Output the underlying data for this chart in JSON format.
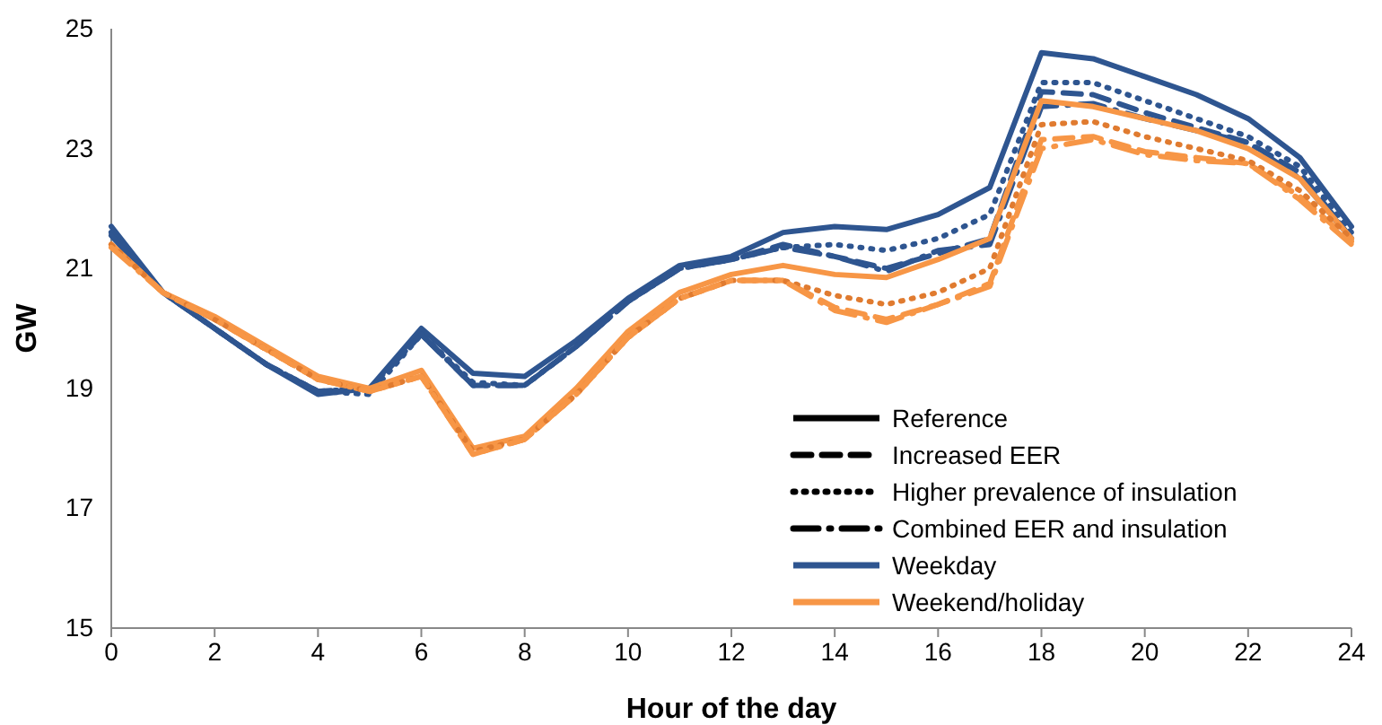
{
  "chart_data": {
    "type": "line",
    "xlabel": "Hour of the day",
    "ylabel": "GW",
    "x": [
      0,
      1,
      2,
      3,
      4,
      5,
      6,
      7,
      8,
      9,
      10,
      11,
      12,
      13,
      14,
      15,
      16,
      17,
      18,
      19,
      20,
      21,
      22,
      23,
      24
    ],
    "xlim": [
      0,
      24
    ],
    "xticks": [
      0,
      2,
      4,
      6,
      8,
      10,
      12,
      14,
      16,
      18,
      20,
      22,
      24
    ],
    "ylim": [
      15,
      25
    ],
    "yticks": [
      15,
      17,
      19,
      21,
      23,
      25
    ],
    "grid": false,
    "annotations": [
      "Reference",
      "Increased EER",
      "Higher prevalence of insulation",
      "Combined EER and insulation",
      "Weekday",
      "Weekend/holiday"
    ],
    "series": [
      {
        "color": "#2e5590",
        "line_style": "solid",
        "values": [
          21.7,
          20.6,
          20.0,
          19.4,
          18.9,
          19.0,
          20.0,
          19.25,
          19.2,
          19.8,
          20.5,
          21.05,
          21.2,
          21.6,
          21.7,
          21.65,
          21.9,
          22.35,
          24.6,
          24.5,
          24.2,
          23.9,
          23.5,
          22.85,
          21.7
        ]
      },
      {
        "color": "#2e5590",
        "line_style": "dashed",
        "values": [
          21.6,
          20.6,
          20.0,
          19.4,
          18.95,
          19.0,
          19.9,
          19.05,
          19.05,
          19.7,
          20.45,
          21.0,
          21.15,
          21.4,
          21.2,
          21.0,
          21.25,
          21.5,
          23.95,
          23.9,
          23.6,
          23.35,
          23.1,
          22.6,
          21.5
        ]
      },
      {
        "color": "#2e5590",
        "line_style": "dotted",
        "values": [
          21.6,
          20.6,
          20.0,
          19.4,
          18.95,
          18.9,
          19.9,
          19.1,
          19.05,
          19.7,
          20.45,
          21.0,
          21.15,
          21.35,
          21.4,
          21.3,
          21.5,
          21.9,
          24.1,
          24.1,
          23.8,
          23.5,
          23.2,
          22.7,
          21.6
        ]
      },
      {
        "color": "#2e5590",
        "line_style": "dashdot",
        "values": [
          21.55,
          20.6,
          20.0,
          19.4,
          18.95,
          19.0,
          19.9,
          19.05,
          19.05,
          19.7,
          20.45,
          21.0,
          21.15,
          21.35,
          21.2,
          20.95,
          21.3,
          21.4,
          23.7,
          23.75,
          23.5,
          23.3,
          23.1,
          22.5,
          21.5
        ]
      },
      {
        "color": "#f79646",
        "line_style": "solid",
        "values": [
          21.4,
          20.6,
          20.2,
          19.7,
          19.2,
          19.0,
          19.3,
          18.0,
          18.2,
          19.0,
          19.95,
          20.6,
          20.9,
          21.05,
          20.9,
          20.85,
          21.15,
          21.5,
          23.8,
          23.7,
          23.5,
          23.3,
          23.0,
          22.5,
          21.5
        ]
      },
      {
        "color": "#f79646",
        "line_style": "dashed",
        "values": [
          21.4,
          20.6,
          20.15,
          19.65,
          19.15,
          18.95,
          19.2,
          17.9,
          18.15,
          18.9,
          19.85,
          20.5,
          20.8,
          20.8,
          20.35,
          20.15,
          20.4,
          20.75,
          23.15,
          23.2,
          22.95,
          22.85,
          22.75,
          22.2,
          21.45
        ]
      },
      {
        "color": "#e07b30",
        "line_style": "dotted",
        "values": [
          21.4,
          20.6,
          20.15,
          19.65,
          19.15,
          18.95,
          19.2,
          17.95,
          18.15,
          18.9,
          19.85,
          20.5,
          20.8,
          20.8,
          20.55,
          20.4,
          20.6,
          21.0,
          23.4,
          23.45,
          23.2,
          23.0,
          22.8,
          22.3,
          21.5
        ]
      },
      {
        "color": "#f79646",
        "line_style": "dashdot",
        "values": [
          21.35,
          20.6,
          20.15,
          19.65,
          19.15,
          18.95,
          19.2,
          17.9,
          18.15,
          18.9,
          19.85,
          20.5,
          20.8,
          20.8,
          20.3,
          20.1,
          20.4,
          20.7,
          23.0,
          23.15,
          22.9,
          22.8,
          22.75,
          22.15,
          21.4
        ]
      }
    ]
  }
}
